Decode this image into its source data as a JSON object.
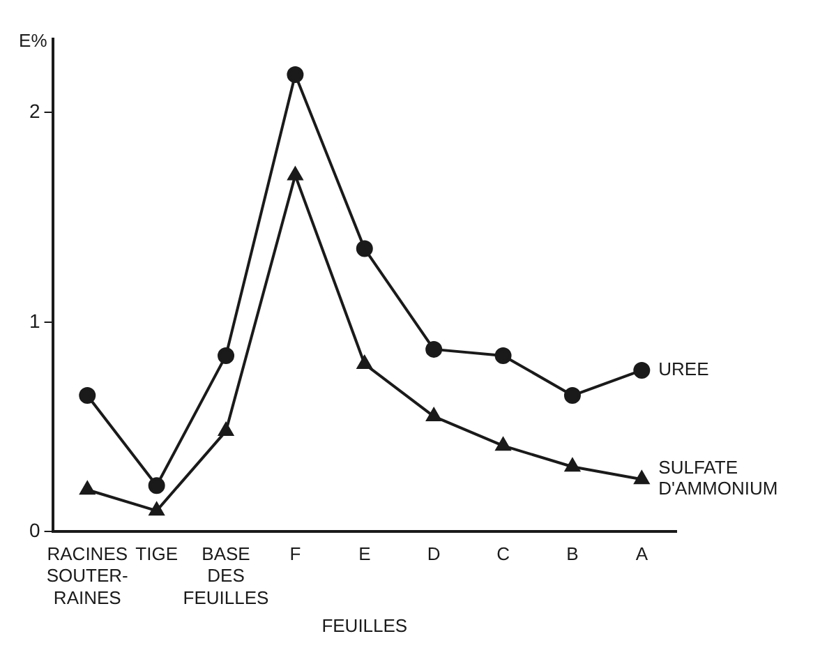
{
  "chart_data": {
    "type": "line",
    "ylabel": "E%",
    "categories": [
      "RACINES\nSOUTER-\nRAINES",
      "TIGE",
      "BASE\nDES\nFEUILLES",
      "F",
      "E",
      "D",
      "C",
      "B",
      "A"
    ],
    "series": [
      {
        "name": "UREE",
        "color": "#1a1a1a",
        "marker": "circle",
        "values": [
          0.65,
          0.22,
          0.84,
          2.18,
          1.35,
          0.87,
          0.84,
          0.65,
          0.77
        ]
      },
      {
        "name": "SULFATE D'AMMONIUM",
        "color": "#1a1a1a",
        "marker": "triangle",
        "values": [
          0.2,
          0.1,
          0.48,
          1.7,
          0.8,
          0.55,
          0.41,
          0.31,
          0.25
        ]
      }
    ],
    "ylim": [
      0,
      2.35
    ],
    "yticks": [
      0,
      1,
      2
    ],
    "grid": false,
    "legend": false,
    "annotations": [
      "FEUILLES"
    ]
  }
}
